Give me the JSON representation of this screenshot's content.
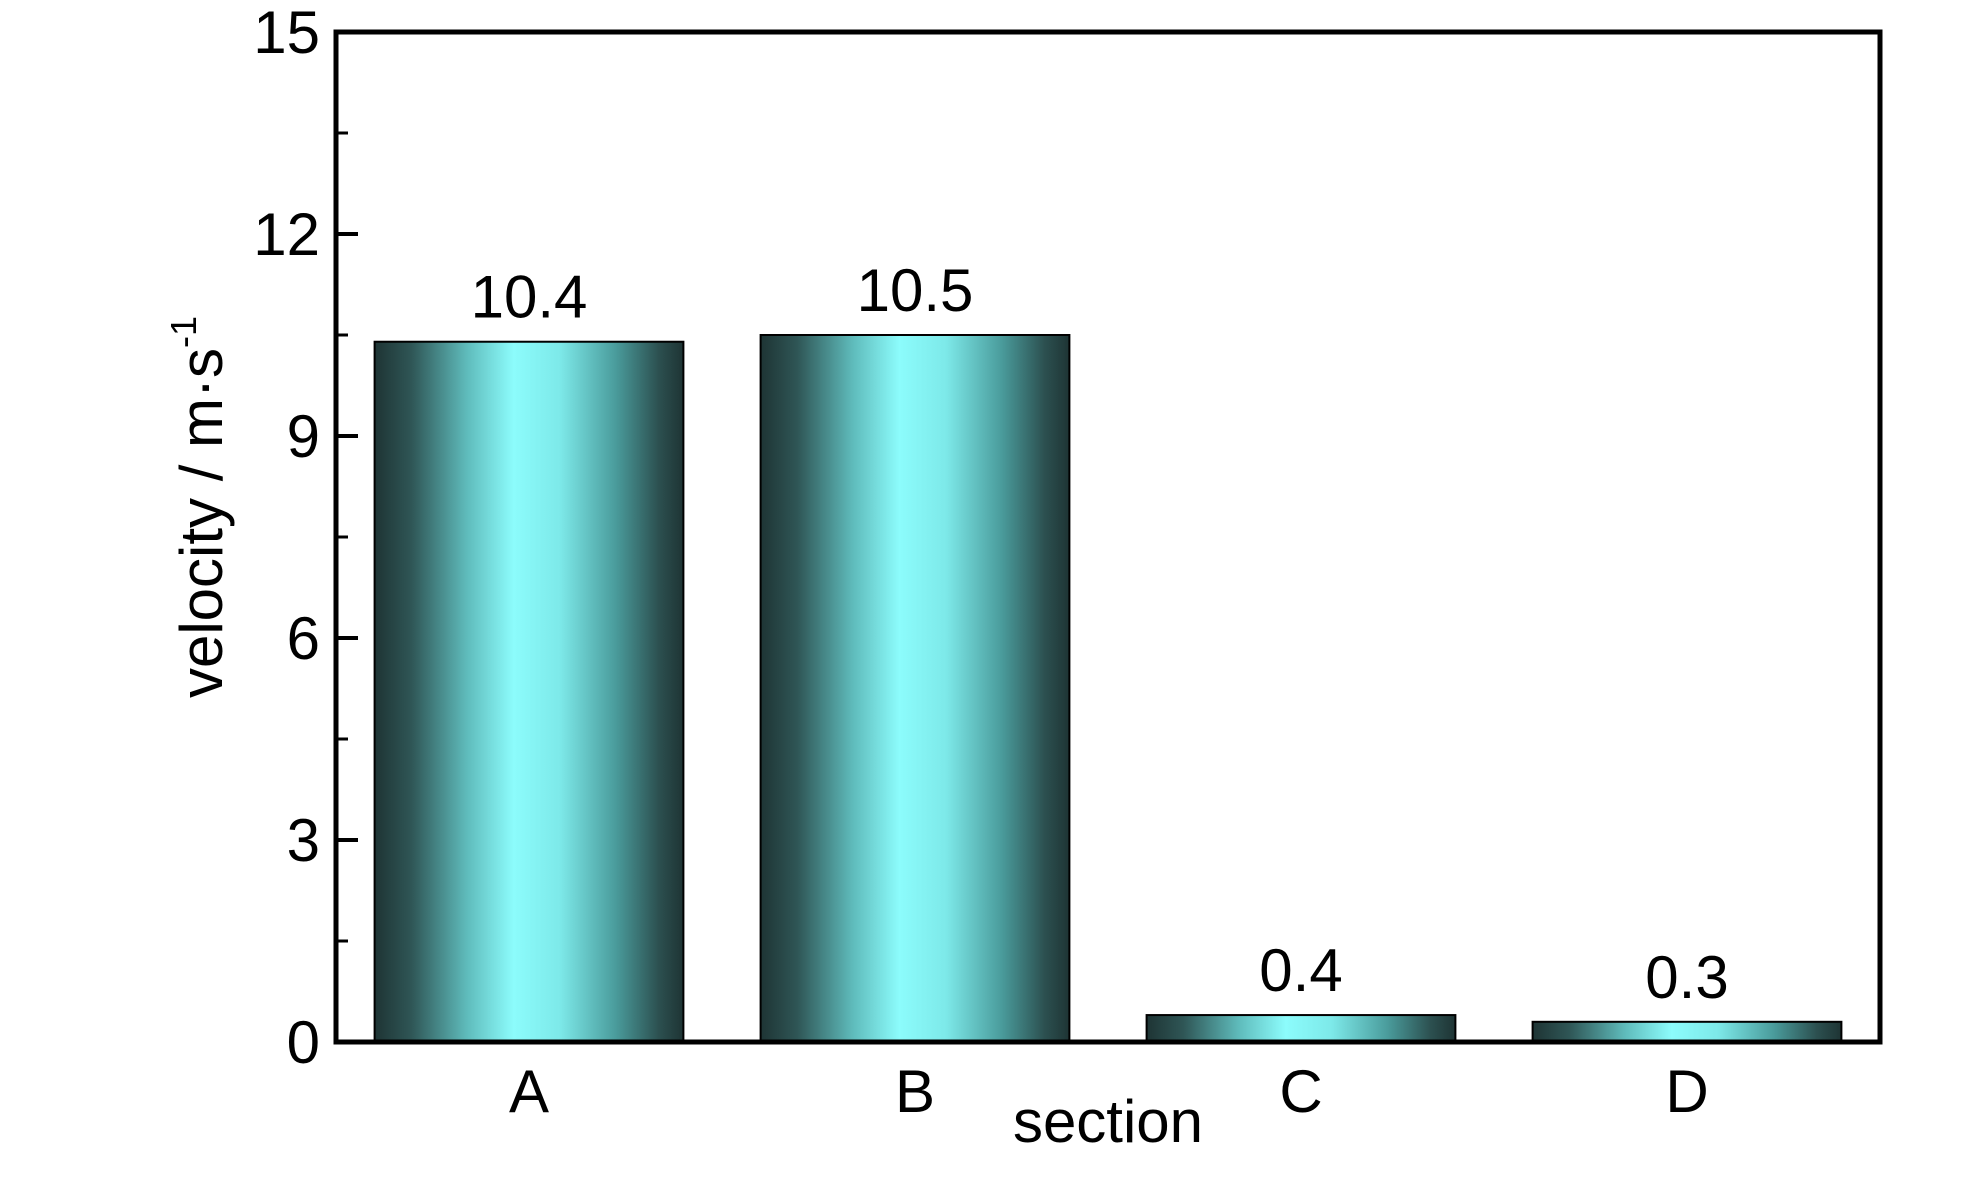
{
  "chart_data": {
    "type": "bar",
    "xlabel": "section",
    "ylabel": "velocity / m·s",
    "ylabel_superscript": "-1",
    "categories": [
      "A",
      "B",
      "C",
      "D"
    ],
    "values": [
      10.4,
      10.5,
      0.4,
      0.3
    ],
    "value_labels": [
      "10.4",
      "10.5",
      "0.4",
      "0.3"
    ],
    "ylim": [
      0,
      15
    ],
    "yticks": [
      0,
      3,
      6,
      9,
      12,
      15
    ],
    "yticks_minor": [
      1.5,
      4.5,
      7.5,
      10.5,
      13.5
    ],
    "ytick_labels": [
      "0",
      "3",
      "6",
      "9",
      "12",
      "15"
    ],
    "grid": false,
    "legend": "none",
    "colors": {
      "bar_center": "#8cfcfc",
      "bar_mid": "#4a9c9c",
      "bar_edge": "#1e3434",
      "axis": "#000000"
    }
  }
}
